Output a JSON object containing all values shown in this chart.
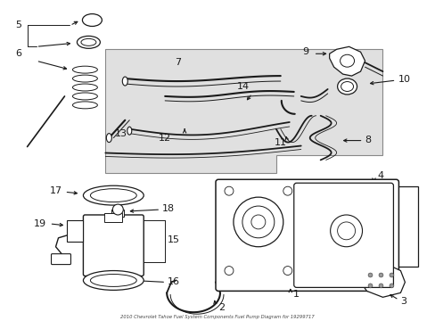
{
  "title": "2010 Chevrolet Tahoe Fuel System Components Fuel Pump Diagram for 19299717",
  "bg_color": "#ffffff",
  "box_bg": "#e8e8e8",
  "line_color": "#1a1a1a",
  "fig_width": 4.89,
  "fig_height": 3.6,
  "dpi": 100
}
